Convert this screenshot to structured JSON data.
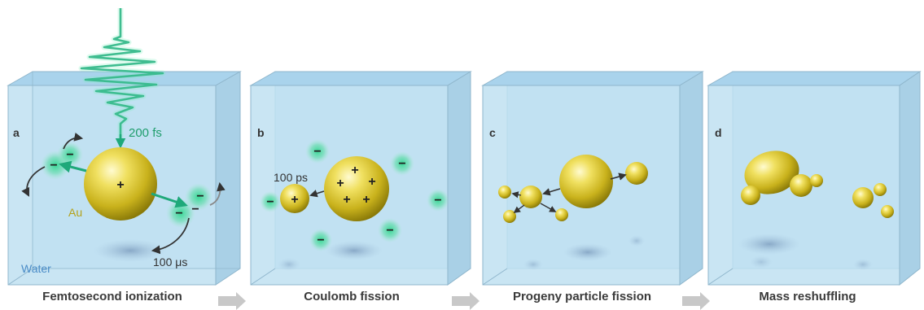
{
  "panels": [
    {
      "letter": "a",
      "caption": "Femtosecond ionization"
    },
    {
      "letter": "b",
      "caption": "Coulomb fission"
    },
    {
      "letter": "c",
      "caption": "Progeny particle fission"
    },
    {
      "letter": "d",
      "caption": "Mass reshuffling"
    }
  ],
  "labels": {
    "pulse_duration": "200 fs",
    "gold": "Au",
    "water": "Water",
    "ejection_time": "100 μs",
    "fission_time": "100 ps"
  },
  "symbols": {
    "plus": "+",
    "minus": "−"
  },
  "colors": {
    "water": "#bfe0f1",
    "gold": "#e6d23a",
    "electron_glow": "#3cc98a",
    "laser": "#1fa97a",
    "label_green": "#1f9d6d",
    "water_label": "#4a8cc7",
    "caption": "#3a3a3a",
    "process_arrow": "#c8c8c8"
  }
}
